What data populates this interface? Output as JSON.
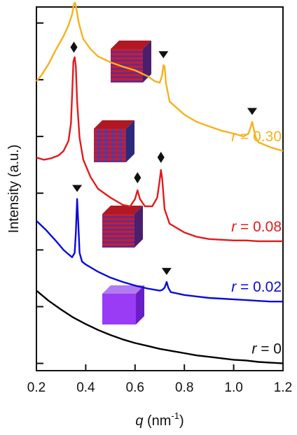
{
  "chart_data": {
    "type": "line",
    "xlabel": {
      "prefix": "q",
      "unit": "(nm",
      "exponent": "-1",
      "suffix": ")"
    },
    "ylabel": "Intensity (a.u.)",
    "xlim": [
      0.2,
      1.2
    ],
    "x_ticks": [
      0.2,
      0.4,
      0.6,
      0.8,
      1.0,
      1.2
    ],
    "x_tick_labels": [
      "0.2",
      "0.4",
      "0.6",
      "0.8",
      "1.0",
      "1.2"
    ],
    "ylim": [
      0,
      500
    ],
    "y_ticks": [
      10,
      88,
      166,
      244,
      322,
      400,
      478
    ],
    "y_tick_labels": [],
    "grid": false,
    "legend": "none",
    "series": [
      {
        "label_var": "r",
        "label_value": "= 0",
        "color": "#000000",
        "points": [
          [
            0.2,
            110
          ],
          [
            0.25,
            96
          ],
          [
            0.3,
            84
          ],
          [
            0.35,
            73
          ],
          [
            0.4,
            64
          ],
          [
            0.45,
            56
          ],
          [
            0.5,
            49
          ],
          [
            0.55,
            43
          ],
          [
            0.6,
            38
          ],
          [
            0.65,
            34
          ],
          [
            0.7,
            30
          ],
          [
            0.75,
            27
          ],
          [
            0.8,
            24
          ],
          [
            0.85,
            21
          ],
          [
            0.9,
            19
          ],
          [
            0.95,
            17
          ],
          [
            1.0,
            15
          ],
          [
            1.05,
            14
          ],
          [
            1.1,
            12
          ],
          [
            1.15,
            11
          ],
          [
            1.2,
            10
          ]
        ],
        "peaks": [],
        "inset_icon": "isotropic-cube-icon"
      },
      {
        "label_var": "r",
        "label_value": "= 0.02",
        "color": "#0a0adc",
        "points": [
          [
            0.2,
            206
          ],
          [
            0.24,
            193
          ],
          [
            0.28,
            178
          ],
          [
            0.31,
            166
          ],
          [
            0.33,
            160
          ],
          [
            0.345,
            156
          ],
          [
            0.355,
            162
          ],
          [
            0.36,
            190
          ],
          [
            0.365,
            236
          ],
          [
            0.37,
            202
          ],
          [
            0.375,
            162
          ],
          [
            0.385,
            150
          ],
          [
            0.4,
            146
          ],
          [
            0.45,
            136
          ],
          [
            0.5,
            128
          ],
          [
            0.55,
            122
          ],
          [
            0.6,
            117
          ],
          [
            0.65,
            113
          ],
          [
            0.7,
            110
          ],
          [
            0.71,
            111
          ],
          [
            0.72,
            114
          ],
          [
            0.728,
            122
          ],
          [
            0.735,
            114
          ],
          [
            0.745,
            108
          ],
          [
            0.8,
            104
          ],
          [
            0.85,
            102
          ],
          [
            0.9,
            100
          ],
          [
            0.95,
            99
          ],
          [
            1.0,
            98
          ],
          [
            1.05,
            97
          ],
          [
            1.1,
            96
          ],
          [
            1.15,
            95
          ],
          [
            1.2,
            95
          ]
        ],
        "peaks": [
          {
            "q": 0.365,
            "marker": "triangle"
          },
          {
            "q": 0.728,
            "marker": "triangle"
          }
        ],
        "inset_icon": "lamellar-cube-icon"
      },
      {
        "label_var": "r",
        "label_value": "= 0.08",
        "color": "#e31a1c",
        "points": [
          [
            0.2,
            293
          ],
          [
            0.23,
            290
          ],
          [
            0.26,
            292
          ],
          [
            0.29,
            296
          ],
          [
            0.31,
            302
          ],
          [
            0.33,
            316
          ],
          [
            0.34,
            340
          ],
          [
            0.345,
            380
          ],
          [
            0.35,
            425
          ],
          [
            0.355,
            431
          ],
          [
            0.36,
            418
          ],
          [
            0.365,
            370
          ],
          [
            0.375,
            320
          ],
          [
            0.39,
            290
          ],
          [
            0.42,
            266
          ],
          [
            0.45,
            250
          ],
          [
            0.5,
            238
          ],
          [
            0.55,
            228
          ],
          [
            0.58,
            226
          ],
          [
            0.6,
            236
          ],
          [
            0.61,
            248
          ],
          [
            0.62,
            236
          ],
          [
            0.64,
            226
          ],
          [
            0.67,
            226
          ],
          [
            0.69,
            238
          ],
          [
            0.7,
            262
          ],
          [
            0.705,
            276
          ],
          [
            0.71,
            264
          ],
          [
            0.72,
            222
          ],
          [
            0.74,
            202
          ],
          [
            0.8,
            190
          ],
          [
            0.85,
            184
          ],
          [
            0.9,
            181
          ],
          [
            0.95,
            180
          ],
          [
            1.0,
            179
          ],
          [
            1.05,
            179
          ],
          [
            1.1,
            178
          ],
          [
            1.15,
            178
          ],
          [
            1.2,
            178
          ]
        ],
        "peaks": [
          {
            "q": 0.352,
            "marker": "diamond"
          },
          {
            "q": 0.61,
            "marker": "diamond"
          },
          {
            "q": 0.705,
            "marker": "diamond"
          }
        ],
        "inset_icon": "hybrid-lamellar-cube-icon"
      },
      {
        "label_var": "r",
        "label_value": "= 0.30",
        "color": "#f5b21d",
        "points": [
          [
            0.2,
            398
          ],
          [
            0.22,
            406
          ],
          [
            0.25,
            422
          ],
          [
            0.28,
            442
          ],
          [
            0.31,
            460
          ],
          [
            0.33,
            475
          ],
          [
            0.345,
            490
          ],
          [
            0.352,
            504
          ],
          [
            0.357,
            506
          ],
          [
            0.362,
            498
          ],
          [
            0.372,
            478
          ],
          [
            0.39,
            456
          ],
          [
            0.42,
            442
          ],
          [
            0.45,
            432
          ],
          [
            0.5,
            424
          ],
          [
            0.55,
            418
          ],
          [
            0.6,
            413
          ],
          [
            0.65,
            405
          ],
          [
            0.68,
            398
          ],
          [
            0.7,
            396
          ],
          [
            0.71,
            406
          ],
          [
            0.715,
            420
          ],
          [
            0.72,
            418
          ],
          [
            0.725,
            396
          ],
          [
            0.74,
            370
          ],
          [
            0.8,
            352
          ],
          [
            0.85,
            342
          ],
          [
            0.9,
            336
          ],
          [
            0.95,
            330
          ],
          [
            1.0,
            326
          ],
          [
            1.04,
            322
          ],
          [
            1.06,
            326
          ],
          [
            1.07,
            336
          ],
          [
            1.075,
            342
          ],
          [
            1.08,
            334
          ],
          [
            1.09,
            320
          ],
          [
            1.1,
            314
          ],
          [
            1.15,
            307
          ],
          [
            1.2,
            302
          ]
        ],
        "peaks": [
          {
            "q": 0.357,
            "marker": "triangle"
          },
          {
            "q": 0.715,
            "marker": "triangle"
          },
          {
            "q": 1.075,
            "marker": "triangle"
          }
        ],
        "inset_icon": "lamellar-cube-icon"
      }
    ]
  }
}
